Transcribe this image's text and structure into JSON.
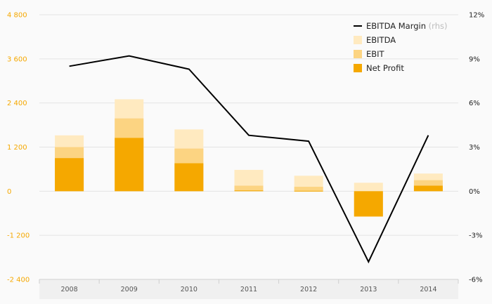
{
  "chart_data": {
    "type": "bar",
    "categories": [
      "2008",
      "2009",
      "2010",
      "2011",
      "2012",
      "2013",
      "2014"
    ],
    "series": [
      {
        "name": "EBITDA",
        "type": "bar",
        "axis": "left",
        "values": [
          1520,
          2500,
          1680,
          580,
          420,
          230,
          480
        ],
        "color": "#ffeac0"
      },
      {
        "name": "EBIT",
        "type": "bar",
        "axis": "left",
        "values": [
          1200,
          1980,
          1160,
          150,
          120,
          -700,
          300
        ],
        "color": "#fcd482"
      },
      {
        "name": "Net Profit",
        "type": "bar",
        "axis": "left",
        "values": [
          900,
          1450,
          760,
          20,
          10,
          -680,
          150
        ],
        "color": "#f5a800"
      },
      {
        "name": "EBITDA Margin",
        "type": "line",
        "axis": "right",
        "values": [
          8.5,
          9.2,
          8.3,
          3.8,
          3.4,
          -4.8,
          3.8
        ],
        "color": "#000000"
      }
    ],
    "ylim_left": [
      -2400,
      4800
    ],
    "yticks_left": [
      "4 800",
      "3 600",
      "2 400",
      "1 200",
      "0",
      "-1 200",
      "-2 400"
    ],
    "ylim_right": [
      -6,
      12
    ],
    "yticks_right": [
      "12%",
      "9%",
      "6%",
      "3%",
      "0%",
      "-3%",
      "-6%"
    ],
    "legend": {
      "position": "top-right",
      "entries": [
        {
          "label": "EBITDA Margin",
          "note": "(rhs)",
          "symbol": "line",
          "color": "#000000"
        },
        {
          "label": "EBITDA",
          "symbol": "box",
          "color": "#ffeac0"
        },
        {
          "label": "EBIT",
          "symbol": "box",
          "color": "#fcd482"
        },
        {
          "label": "Net Profit",
          "symbol": "box",
          "color": "#f5a800"
        }
      ]
    },
    "grid": true
  }
}
